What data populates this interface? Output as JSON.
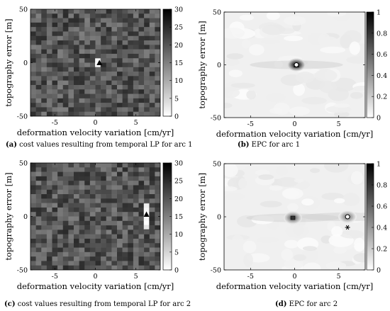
{
  "chart_data": [
    {
      "type": "heatmap",
      "panel": "a",
      "caption_letter": "(a)",
      "caption": "cost values resulting from temporal LP for arc 1",
      "xlabel": "deformation velocity variation [cm/yr]",
      "ylabel": "topography error [m]",
      "xlim": [
        -8,
        8
      ],
      "ylim": [
        -50,
        50
      ],
      "xticks": [
        "-5",
        "0",
        "5"
      ],
      "yticks": [
        "50",
        "0",
        "-50"
      ],
      "grid_cells": [
        24,
        24
      ],
      "colorbar": {
        "min": 0,
        "max": 30,
        "ticks": [
          "30",
          "25",
          "20",
          "15",
          "10",
          "5",
          "0"
        ],
        "colormap": "white-to-black"
      },
      "background_cost_range": [
        15,
        25
      ],
      "low_cost_cells": [
        {
          "x": 0.3,
          "y": 2,
          "value": 1
        },
        {
          "x": 0.3,
          "y": -2,
          "value": 0
        }
      ],
      "markers": [
        {
          "symbol": "triangle",
          "x": 0.5,
          "y": 0
        }
      ]
    },
    {
      "type": "heatmap",
      "panel": "b",
      "caption_letter": "(b)",
      "caption": "EPC for arc 1",
      "xlabel": "deformation velocity variation [cm/yr]",
      "ylabel": "topography error [m]",
      "xlim": [
        -8,
        8
      ],
      "ylim": [
        -50,
        50
      ],
      "xticks": [
        "-5",
        "0",
        "5"
      ],
      "yticks": [
        "50",
        "0",
        "-50"
      ],
      "colorbar": {
        "min": 0,
        "max": 1,
        "ticks": [
          "1",
          "0.8",
          "0.6",
          "0.4",
          "0.2",
          "0"
        ],
        "colormap": "white-to-black"
      },
      "peaks": [
        {
          "x": 0.2,
          "y": 0,
          "value": 0.95
        }
      ],
      "markers": [
        {
          "symbol": "triangle",
          "x": 0.2,
          "y": 0
        },
        {
          "symbol": "circle",
          "x": 0.2,
          "y": 0
        }
      ]
    },
    {
      "type": "heatmap",
      "panel": "c",
      "caption_letter": "(c)",
      "caption": "cost values resulting from temporal LP for arc 2",
      "xlabel": "deformation velocity variation [cm/yr]",
      "ylabel": "topography error [m]",
      "xlim": [
        -8,
        8
      ],
      "ylim": [
        -50,
        50
      ],
      "xticks": [
        "-5",
        "0",
        "5"
      ],
      "yticks": [
        "50",
        "0",
        "-50"
      ],
      "grid_cells": [
        24,
        24
      ],
      "colorbar": {
        "min": 0,
        "max": 30,
        "ticks": [
          "30",
          "25",
          "20",
          "15",
          "10",
          "5",
          "0"
        ],
        "colormap": "white-to-black"
      },
      "background_cost_range": [
        15,
        25
      ],
      "low_cost_cells": [
        {
          "x": 6.3,
          "y": 10,
          "value": 2
        },
        {
          "x": 6.3,
          "y": 6,
          "value": 1
        },
        {
          "x": 6.3,
          "y": 2,
          "value": 0
        },
        {
          "x": 6.3,
          "y": -2,
          "value": 1
        },
        {
          "x": 6.3,
          "y": -6,
          "value": 0
        },
        {
          "x": 6.3,
          "y": -10,
          "value": 3
        }
      ],
      "markers": [
        {
          "symbol": "triangle",
          "x": 6.3,
          "y": 2
        }
      ]
    },
    {
      "type": "heatmap",
      "panel": "d",
      "caption_letter": "(d)",
      "caption": "EPC for arc 2",
      "xlabel": "deformation velocity variation [cm/yr]",
      "ylabel": "topography error [m]",
      "xlim": [
        -8,
        8
      ],
      "ylim": [
        -50,
        50
      ],
      "xticks": [
        "-5",
        "0",
        "5"
      ],
      "yticks": [
        "50",
        "0",
        "-50"
      ],
      "colorbar": {
        "min": 0,
        "max": 1,
        "ticks": [
          "1",
          "0.8",
          "0.6",
          "0.4",
          "0.2",
          "0"
        ],
        "colormap": "white-to-black"
      },
      "peaks": [
        {
          "x": 6.0,
          "y": 0,
          "value": 0.5
        },
        {
          "x": -0.2,
          "y": -1,
          "value": 0.6
        }
      ],
      "markers": [
        {
          "symbol": "circle",
          "x": 6.0,
          "y": 0
        },
        {
          "symbol": "square",
          "x": -0.2,
          "y": -1
        },
        {
          "symbol": "asterisk",
          "x": 6.0,
          "y": -10
        }
      ]
    }
  ]
}
